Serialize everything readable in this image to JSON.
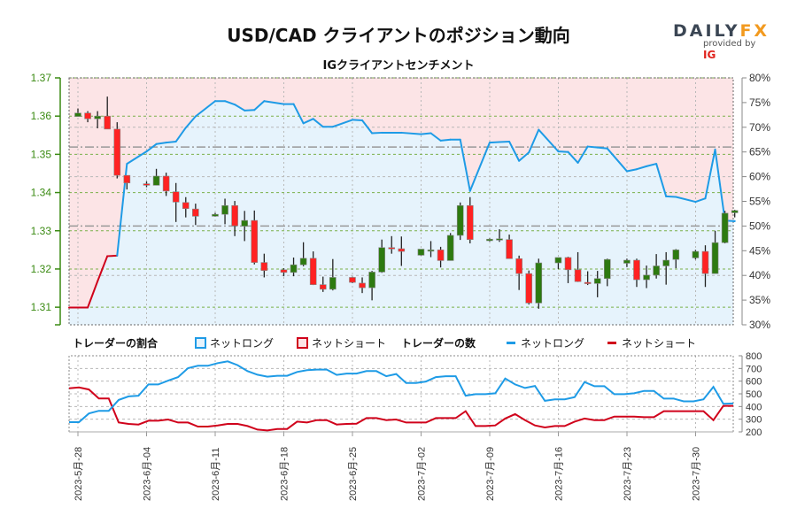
{
  "header": {
    "title": "USD/CAD クライアントのポジション動向",
    "subtitle": "IGクライアントセンチメント",
    "logo_text": "DAILYFX",
    "logo_sub": "provided by",
    "logo_brand": "IG"
  },
  "legend": {
    "ratio_title": "トレーダーの割合",
    "ratio_long": "ネットロング",
    "ratio_short": "ネットショート",
    "count_title": "トレーダーの数",
    "count_long": "ネットロング",
    "count_short": "ネットショート"
  },
  "colors": {
    "long": "#1e9be6",
    "short": "#d0021b",
    "long_fill": "#e6f3fc",
    "short_fill": "#fce4e6",
    "candle_up": "#2d7a10",
    "candle_down": "#ff2222",
    "price_axis": "#3a8a12",
    "grid_price": "#7ab04a",
    "grid_pct": "#b8b8b8"
  },
  "chart_data": {
    "type": "candlestick+line",
    "price_axis": {
      "ylim": [
        1.3054,
        1.37
      ],
      "ticks": [
        "1.37",
        "1.36",
        "1.35",
        "1.34",
        "1.33",
        "1.32",
        "1.31"
      ]
    },
    "pct_axis": {
      "ylim": [
        30,
        80
      ],
      "ticks": [
        "80%",
        "75%",
        "70%",
        "65%",
        "60%",
        "55%",
        "50%",
        "45%",
        "40%",
        "35%",
        "30%"
      ]
    },
    "reference_lines_pct": [
      50,
      66
    ],
    "x_start": "2023-05-28",
    "x_end": "2023-08-03",
    "x_tick_labels": [
      "2023-5月-28",
      "2023-6月-04",
      "2023-6月-11",
      "2023-6月-18",
      "2023-6月-25",
      "2023-7月-02",
      "2023-7月-09",
      "2023-7月-16",
      "2023-7月-23",
      "2023-7月-30"
    ],
    "candles": [
      [
        "2023-05-28",
        1.3599,
        1.362,
        1.3599,
        1.3608
      ],
      [
        "2023-05-29",
        1.3608,
        1.3613,
        1.3584,
        1.3593
      ],
      [
        "2023-05-30",
        1.3593,
        1.3613,
        1.3568,
        1.36
      ],
      [
        "2023-05-31",
        1.36,
        1.3651,
        1.3566,
        1.3566
      ],
      [
        "2023-06-01",
        1.3566,
        1.3584,
        1.3437,
        1.3445
      ],
      [
        "2023-06-02",
        1.3445,
        1.3445,
        1.3408,
        1.3425
      ],
      [
        "2023-06-04",
        1.3423,
        1.3429,
        1.3414,
        1.3419
      ],
      [
        "2023-06-05",
        1.3419,
        1.3462,
        1.3419,
        1.3443
      ],
      [
        "2023-06-06",
        1.3443,
        1.3452,
        1.3391,
        1.3404
      ],
      [
        "2023-06-07",
        1.3402,
        1.3425,
        1.3323,
        1.3375
      ],
      [
        "2023-06-08",
        1.3374,
        1.3388,
        1.3335,
        1.3358
      ],
      [
        "2023-06-09",
        1.3357,
        1.3371,
        1.3315,
        1.3338
      ],
      [
        "2023-06-11",
        1.3338,
        1.3347,
        1.3337,
        1.3343
      ],
      [
        "2023-06-12",
        1.3343,
        1.3384,
        1.3317,
        1.3366
      ],
      [
        "2023-06-13",
        1.3366,
        1.3378,
        1.3286,
        1.3313
      ],
      [
        "2023-06-14",
        1.3312,
        1.3352,
        1.3273,
        1.3327
      ],
      [
        "2023-06-15",
        1.3327,
        1.3353,
        1.3212,
        1.3217
      ],
      [
        "2023-06-16",
        1.3217,
        1.324,
        1.3178,
        1.3196
      ],
      [
        "2023-06-18",
        1.3198,
        1.3202,
        1.3181,
        1.3191
      ],
      [
        "2023-06-19",
        1.3191,
        1.323,
        1.3181,
        1.3211
      ],
      [
        "2023-06-20",
        1.3211,
        1.327,
        1.3207,
        1.3228
      ],
      [
        "2023-06-21",
        1.3228,
        1.3246,
        1.3158,
        1.3159
      ],
      [
        "2023-06-22",
        1.3159,
        1.318,
        1.314,
        1.3147
      ],
      [
        "2023-06-23",
        1.3147,
        1.3226,
        1.3144,
        1.3178
      ],
      [
        "2023-06-25",
        1.3178,
        1.318,
        1.3163,
        1.3165
      ],
      [
        "2023-06-26",
        1.3163,
        1.3178,
        1.3137,
        1.3151
      ],
      [
        "2023-06-27",
        1.3151,
        1.3195,
        1.3118,
        1.3192
      ],
      [
        "2023-06-28",
        1.3192,
        1.3277,
        1.319,
        1.3256
      ],
      [
        "2023-06-29",
        1.3256,
        1.3286,
        1.324,
        1.3253
      ],
      [
        "2023-06-30",
        1.3253,
        1.3285,
        1.3208,
        1.3246
      ],
      [
        "2023-07-02",
        1.3236,
        1.3252,
        1.3235,
        1.3252
      ],
      [
        "2023-07-03",
        1.325,
        1.3273,
        1.3231,
        1.325
      ],
      [
        "2023-07-04",
        1.325,
        1.3258,
        1.3204,
        1.3222
      ],
      [
        "2023-07-05",
        1.3222,
        1.3294,
        1.3222,
        1.3288
      ],
      [
        "2023-07-06",
        1.3288,
        1.3374,
        1.3276,
        1.3366
      ],
      [
        "2023-07-07",
        1.3366,
        1.3388,
        1.3267,
        1.3277
      ],
      [
        "2023-07-09",
        1.3274,
        1.328,
        1.3272,
        1.3278
      ],
      [
        "2023-07-10",
        1.3279,
        1.3304,
        1.3271,
        1.3279
      ],
      [
        "2023-07-11",
        1.3277,
        1.329,
        1.3227,
        1.3227
      ],
      [
        "2023-07-12",
        1.3227,
        1.3235,
        1.3145,
        1.3188
      ],
      [
        "2023-07-13",
        1.3188,
        1.3196,
        1.3107,
        1.3111
      ],
      [
        "2023-07-14",
        1.3111,
        1.3227,
        1.3096,
        1.3216
      ],
      [
        "2023-07-16",
        1.3216,
        1.323,
        1.32,
        1.323
      ],
      [
        "2023-07-17",
        1.323,
        1.3232,
        1.3163,
        1.3198
      ],
      [
        "2023-07-18",
        1.3198,
        1.3244,
        1.3166,
        1.3167
      ],
      [
        "2023-07-19",
        1.3165,
        1.3194,
        1.3158,
        1.3162
      ],
      [
        "2023-07-20",
        1.3162,
        1.3195,
        1.3126,
        1.3175
      ],
      [
        "2023-07-21",
        1.3175,
        1.3227,
        1.3155,
        1.3225
      ],
      [
        "2023-07-23",
        1.3215,
        1.3227,
        1.3205,
        1.3223
      ],
      [
        "2023-07-24",
        1.3223,
        1.3227,
        1.3153,
        1.3172
      ],
      [
        "2023-07-25",
        1.3172,
        1.3209,
        1.315,
        1.3184
      ],
      [
        "2023-07-26",
        1.3184,
        1.3239,
        1.3175,
        1.3208
      ],
      [
        "2023-07-27",
        1.3208,
        1.3244,
        1.3159,
        1.3223
      ],
      [
        "2023-07-28",
        1.3225,
        1.3252,
        1.3202,
        1.325
      ],
      [
        "2023-07-30",
        1.3229,
        1.325,
        1.3225,
        1.3246
      ],
      [
        "2023-07-31",
        1.3246,
        1.3262,
        1.3153,
        1.3188
      ],
      [
        "2023-08-01",
        1.3188,
        1.33,
        1.3188,
        1.3269
      ],
      [
        "2023-08-02",
        1.3269,
        1.3352,
        1.3267,
        1.3346
      ],
      [
        "2023-08-03",
        1.3347,
        1.3355,
        1.3335,
        1.3353
      ]
    ],
    "net_long_pct": [
      33.5,
      33.5,
      38.8,
      43.9,
      44.0,
      62.6,
      65.1,
      66.6,
      66.9,
      67.1,
      69.9,
      72.2,
      75.3,
      75.3,
      74.6,
      73.4,
      73.5,
      75.3,
      74.7,
      74.7,
      70.8,
      71.7,
      70.1,
      70.1,
      71.5,
      71.4,
      68.8,
      68.9,
      68.9,
      68.9,
      68.6,
      68.8,
      67.3,
      67.5,
      67.5,
      57.1,
      66.9,
      67.0,
      67.1,
      63.2,
      64.9,
      69.5,
      65.1,
      65.0,
      62.8,
      66.1,
      65.9,
      65.7,
      61.1,
      61.5,
      62.1,
      62.6,
      56.0,
      55.9,
      54.9,
      55.6,
      65.5,
      51.1,
      51.0
    ],
    "count_axis": {
      "ylim": [
        200,
        800
      ],
      "ticks": [
        "800",
        "700",
        "600",
        "500",
        "400",
        "300",
        "200"
      ]
    },
    "count_long": [
      277,
      277,
      345,
      366,
      366,
      452,
      480,
      485,
      574,
      574,
      604,
      632,
      702,
      721,
      721,
      742,
      756,
      726,
      679,
      651,
      635,
      642,
      642,
      672,
      686,
      691,
      691,
      649,
      660,
      660,
      679,
      679,
      639,
      656,
      586,
      586,
      597,
      632,
      639,
      639,
      485,
      497,
      497,
      504,
      621,
      574,
      546,
      562,
      445,
      457,
      457,
      474,
      593,
      560,
      560,
      497,
      497,
      504,
      523,
      523,
      462,
      462,
      441,
      441,
      457,
      555,
      422,
      424
    ],
    "count_short": [
      543,
      550,
      534,
      464,
      464,
      274,
      263,
      258,
      288,
      288,
      298,
      274,
      274,
      242,
      242,
      251,
      263,
      263,
      246,
      218,
      211,
      223,
      223,
      281,
      274,
      293,
      293,
      258,
      263,
      265,
      309,
      309,
      293,
      298,
      274,
      274,
      274,
      309,
      309,
      309,
      363,
      246,
      246,
      251,
      305,
      340,
      293,
      251,
      235,
      246,
      246,
      281,
      305,
      293,
      293,
      321,
      321,
      321,
      316,
      316,
      363,
      363,
      363,
      363,
      363,
      293,
      405,
      405
    ]
  }
}
